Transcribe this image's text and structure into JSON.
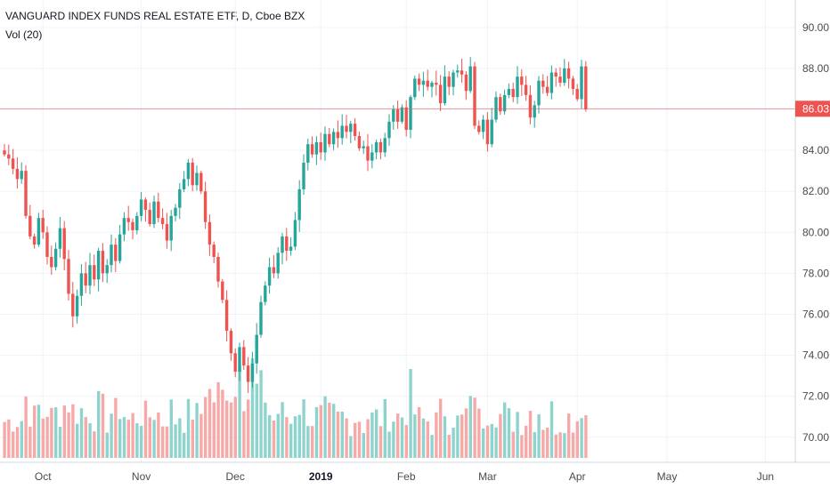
{
  "header": {
    "title": "VANGUARD INDEX FUNDS REAL ESTATE ETF, D, Cboe BZX",
    "volume_label": "Vol (20)"
  },
  "colors": {
    "up": "#26a69a",
    "down": "#ef5350",
    "up_volume": "#8ed4cd",
    "down_volume": "#f7a9a7",
    "price_line": "#ef5350",
    "grid": "#f0f3fa",
    "axis_text": "#4a4a4a"
  },
  "chart_data": {
    "type": "candlestick",
    "title": "VANGUARD INDEX FUNDS REAL ESTATE ETF, D, Cboe BZX",
    "last_price": 86.03,
    "last_price_label": "86.03",
    "y_range": [
      69.6,
      90.6
    ],
    "y_ticks": [
      70,
      72,
      74,
      76,
      78,
      80,
      82,
      84,
      86,
      88,
      90
    ],
    "y_tick_labels": [
      "70.00",
      "72.00",
      "74.00",
      "76.00",
      "78.00",
      "80.00",
      "82.00",
      "84.00",
      "86.00",
      "88.00",
      "90.00"
    ],
    "x_ticks": [
      {
        "label": "Oct",
        "bar": 9,
        "bold": false
      },
      {
        "label": "Nov",
        "bar": 32,
        "bold": false
      },
      {
        "label": "Dec",
        "bar": 54,
        "bold": false
      },
      {
        "label": "2019",
        "bar": 74,
        "bold": true
      },
      {
        "label": "Feb",
        "bar": 94,
        "bold": false
      },
      {
        "label": "Mar",
        "bar": 113,
        "bold": false
      },
      {
        "label": "Apr",
        "bar": 134,
        "bold": false
      },
      {
        "label": "May",
        "bar": 155,
        "bold": false
      },
      {
        "label": "Jun",
        "bar": 178,
        "bold": false
      }
    ],
    "grid": true,
    "series": [
      {
        "name": "VANGUARD INDEX FUNDS REAL ESTATE ETF",
        "closes": [
          83.8,
          83.6,
          83.1,
          82.6,
          83.0,
          80.8,
          79.8,
          79.4,
          80.7,
          80.0,
          78.8,
          78.3,
          79.2,
          80.2,
          78.7,
          77.0,
          75.9,
          76.9,
          78.0,
          77.4,
          78.4,
          77.7,
          79.1,
          78.0,
          78.4,
          79.4,
          78.6,
          79.9,
          80.7,
          80.5,
          80.1,
          80.8,
          81.6,
          81.1,
          80.4,
          81.5,
          80.7,
          80.4,
          79.6,
          80.8,
          81.2,
          82.1,
          82.6,
          83.4,
          82.3,
          82.9,
          82.0,
          80.5,
          79.4,
          78.8,
          77.6,
          76.7,
          75.2,
          74.1,
          73.2,
          74.4,
          73.5,
          72.7,
          73.6,
          75.0,
          76.6,
          77.4,
          78.3,
          78.0,
          79.0,
          79.8,
          79.1,
          79.3,
          80.6,
          82.1,
          83.4,
          84.3,
          83.8,
          84.4,
          83.9,
          84.8,
          84.3,
          84.9,
          84.6,
          85.2,
          84.9,
          85.3,
          84.7,
          84.1,
          84.2,
          83.5,
          83.9,
          84.4,
          83.9,
          84.6,
          85.4,
          86.0,
          85.4,
          86.1,
          85.0,
          86.6,
          87.5,
          87.2,
          87.4,
          87.1,
          87.3,
          87.2,
          86.3,
          87.6,
          87.1,
          87.8,
          87.9,
          87.7,
          86.9,
          88.1,
          85.2,
          84.9,
          85.5,
          84.3,
          85.5,
          86.6,
          85.9,
          86.7,
          87.0,
          86.6,
          87.6,
          87.2,
          86.7,
          85.6,
          86.2,
          87.4,
          87.1,
          86.8,
          87.8,
          87.6,
          87.3,
          88.0,
          87.5,
          87.0,
          86.5,
          88.1,
          86.0
        ]
      }
    ]
  }
}
